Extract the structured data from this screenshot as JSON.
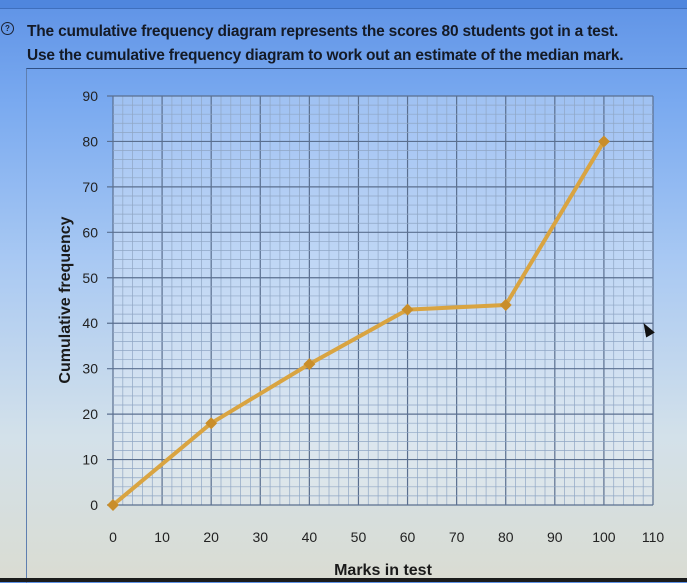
{
  "question": {
    "number_icon": "question-7-icon",
    "line1": "The cumulative frequency diagram represents the scores 80 students got in a test.",
    "line2": "Use the cumulative frequency diagram to work out an estimate of the median mark."
  },
  "colors": {
    "line": "#d9a441",
    "marker": "#c98e2a",
    "grid_major": "#5a6f8f",
    "grid_minor": "#8fa6c4"
  },
  "chart_data": {
    "type": "line",
    "title": "",
    "xlabel": "Marks in test",
    "ylabel": "Cumulative frequency",
    "x": [
      0,
      20,
      40,
      60,
      80,
      100
    ],
    "series": [
      {
        "name": "Cumulative frequency",
        "values": [
          0,
          18,
          31,
          43,
          44,
          80
        ]
      }
    ],
    "xlim": [
      0,
      110
    ],
    "ylim": [
      0,
      90
    ],
    "x_ticks": [
      0,
      10,
      20,
      30,
      40,
      50,
      60,
      70,
      80,
      90,
      100,
      110
    ],
    "y_ticks": [
      0,
      10,
      20,
      30,
      40,
      50,
      60,
      70,
      80,
      90
    ],
    "grid": {
      "major": 10,
      "minor": 2
    },
    "legend": null
  }
}
